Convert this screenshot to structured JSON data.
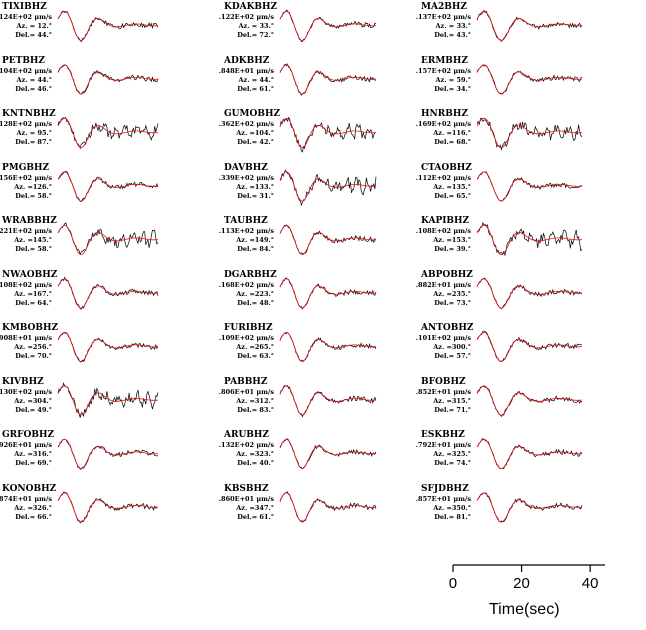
{
  "colors": {
    "observed": "#000000",
    "synthetic": "#e8141c",
    "axis": "#000000"
  },
  "stations": [
    {
      "name": "TIXIBHZ",
      "amp": ".124E+02 μm/s",
      "az": "Az. = 12.°",
      "del": "Del.= 44.°"
    },
    {
      "name": "PETBHZ",
      "amp": ".104E+02 μm/s",
      "az": "Az. = 44.°",
      "del": "Del.= 46.°"
    },
    {
      "name": "KNTNBHZ",
      "amp": ".128E+02 μm/s",
      "az": "Az. = 95.°",
      "del": "Del.= 87.°"
    },
    {
      "name": "PMGBHZ",
      "amp": ".156E+02 μm/s",
      "az": "Az. =126.°",
      "del": "Del.= 58.°"
    },
    {
      "name": "WRABBHZ",
      "amp": ".221E+02 μm/s",
      "az": "Az. =145.°",
      "del": "Del.= 58.°"
    },
    {
      "name": "NWAOBHZ",
      "amp": ".108E+02 μm/s",
      "az": "Az. =167.°",
      "del": "Del.= 64.°"
    },
    {
      "name": "KMBOBHZ",
      "amp": ".908E+01 μm/s",
      "az": "Az. =256.°",
      "del": "Del.= 70.°"
    },
    {
      "name": "KIVBHZ",
      "amp": ".130E+02 μm/s",
      "az": "Az. =304.°",
      "del": "Del.= 49.°"
    },
    {
      "name": "GRFOBHZ",
      "amp": ".926E+01 μm/s",
      "az": "Az. =316.°",
      "del": "Del.= 69.°"
    },
    {
      "name": "KONOBHZ",
      "amp": ".874E+01 μm/s",
      "az": "Az. =326.°",
      "del": "Del.= 66.°"
    },
    {
      "name": "KDAKBHZ",
      "amp": ".122E+02 μm/s",
      "az": "Az. = 33.°",
      "del": "Del.= 72.°"
    },
    {
      "name": "ADKBHZ",
      "amp": ".848E+01 μm/s",
      "az": "Az. = 44.°",
      "del": "Del.= 61.°"
    },
    {
      "name": "GUMOBHZ",
      "amp": ".362E+02 μm/s",
      "az": "Az. =104.°",
      "del": "Del.= 42.°"
    },
    {
      "name": "DAVBHZ",
      "amp": ".339E+02 μm/s",
      "az": "Az. =133.°",
      "del": "Del.= 31.°"
    },
    {
      "name": "TAUBHZ",
      "amp": ".113E+02 μm/s",
      "az": "Az. =149.°",
      "del": "Del.= 84.°"
    },
    {
      "name": "DGARBHZ",
      "amp": ".168E+02 μm/s",
      "az": "Az. =223.°",
      "del": "Del.= 48.°"
    },
    {
      "name": "FURIBHZ",
      "amp": ".109E+02 μm/s",
      "az": "Az. =265.°",
      "del": "Del.= 63.°"
    },
    {
      "name": "PABBHZ",
      "amp": ".806E+01 μm/s",
      "az": "Az. =312.°",
      "del": "Del.= 83.°"
    },
    {
      "name": "ARUBHZ",
      "amp": ".132E+02 μm/s",
      "az": "Az. =323.°",
      "del": "Del.= 40.°"
    },
    {
      "name": "KBSBHZ",
      "amp": ".860E+01 μm/s",
      "az": "Az. =347.°",
      "del": "Del.= 61.°"
    },
    {
      "name": "MA2BHZ",
      "amp": ".137E+02 μm/s",
      "az": "Az. = 33.°",
      "del": "Del.= 43.°"
    },
    {
      "name": "ERMBHZ",
      "amp": ".157E+02 μm/s",
      "az": "Az. = 59.°",
      "del": "Del.= 34.°"
    },
    {
      "name": "HNRBHZ",
      "amp": ".169E+02 μm/s",
      "az": "Az. =116.°",
      "del": "Del.= 68.°"
    },
    {
      "name": "CTAOBHZ",
      "amp": ".112E+02 μm/s",
      "az": "Az. =135.°",
      "del": "Del.= 65.°"
    },
    {
      "name": "KAPIBHZ",
      "amp": ".108E+02 μm/s",
      "az": "Az. =153.°",
      "del": "Del.= 39.°"
    },
    {
      "name": "ABPOBHZ",
      "amp": ".882E+01 μm/s",
      "az": "Az. =235.°",
      "del": "Del.= 73.°"
    },
    {
      "name": "ANTOBHZ",
      "amp": ".101E+02 μm/s",
      "az": "Az. =300.°",
      "del": "Del.= 57.°"
    },
    {
      "name": "BFOBHZ",
      "amp": ".852E+01 μm/s",
      "az": "Az. =315.°",
      "del": "Del.= 71.°"
    },
    {
      "name": "ESKBHZ",
      "amp": ".792E+01 μm/s",
      "az": "Az. =325.°",
      "del": "Del.= 74.°"
    },
    {
      "name": "SFJDBHZ",
      "amp": ".857E+01 μm/s",
      "az": "Az. =350.°",
      "del": "Del.= 81.°"
    }
  ],
  "time_axis": {
    "title": "Time(sec)",
    "ticks": [
      "0",
      "20",
      "40"
    ],
    "range": [
      0,
      42
    ]
  }
}
